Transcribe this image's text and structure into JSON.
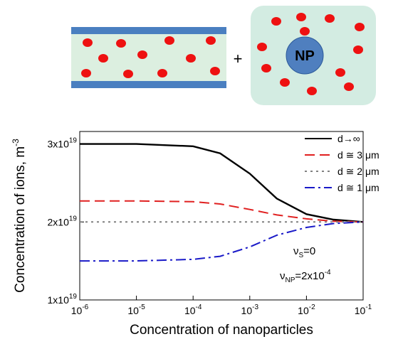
{
  "diagram": {
    "plus": "+",
    "particle_label": "NP"
  },
  "chart_data": {
    "type": "line",
    "y_label": "Concentration of ions, m",
    "y_label_exponent": "-3",
    "x_label": "Concentration of nanoparticles",
    "x": [
      1e-06,
      1e-05,
      0.0001,
      0.0003,
      0.001,
      0.003,
      0.01,
      0.03,
      0.1
    ],
    "series": [
      {
        "name": "d→∞",
        "color": "#000000",
        "dash": "",
        "values": [
          3e+19,
          3e+19,
          2.97e+19,
          2.88e+19,
          2.62e+19,
          2.3e+19,
          2.1e+19,
          2.03e+19,
          2e+19
        ]
      },
      {
        "name": "d ≅ 3 μm",
        "color": "#e02020",
        "dash": "14 7",
        "values": [
          2.27e+19,
          2.27e+19,
          2.26e+19,
          2.23e+19,
          2.16e+19,
          2.09e+19,
          2.04e+19,
          2.01e+19,
          2e+19
        ]
      },
      {
        "name": "d ≅ 2 μm",
        "color": "#808080",
        "dash": "3 5",
        "values": [
          2e+19,
          2e+19,
          2e+19,
          2e+19,
          2e+19,
          2e+19,
          2e+19,
          2e+19,
          2e+19
        ]
      },
      {
        "name": "d ≅ 1 μm",
        "color": "#1a1ac8",
        "dash": "14 5 3 5",
        "values": [
          1.5e+19,
          1.5e+19,
          1.52e+19,
          1.56e+19,
          1.68e+19,
          1.83e+19,
          1.93e+19,
          1.98e+19,
          2e+19
        ]
      }
    ],
    "xlog": true,
    "xlim": [
      1e-06,
      0.1
    ],
    "xticks": [
      {
        "value": 1e-06,
        "label": "10",
        "exponent": "-6"
      },
      {
        "value": 1e-05,
        "label": "10",
        "exponent": "-5"
      },
      {
        "value": 0.0001,
        "label": "10",
        "exponent": "-4"
      },
      {
        "value": 0.001,
        "label": "10",
        "exponent": "-3"
      },
      {
        "value": 0.01,
        "label": "10",
        "exponent": "-2"
      },
      {
        "value": 0.1,
        "label": "10",
        "exponent": "-1"
      }
    ],
    "ylim": [
      1e+19,
      3.16e+19
    ],
    "yticks": [
      {
        "value": 1e+19,
        "label": "1x10",
        "exponent": "19"
      },
      {
        "value": 2e+19,
        "label": "2x10",
        "exponent": "19"
      },
      {
        "value": 3e+19,
        "label": "3x10",
        "exponent": "19"
      }
    ],
    "annotations": [
      {
        "symbol": "ν",
        "subscript": "S",
        "text": "=0"
      },
      {
        "symbol": "ν",
        "subscript": "NP",
        "text": "=2x10",
        "exponent": "-4"
      }
    ],
    "legend": "upper right"
  }
}
